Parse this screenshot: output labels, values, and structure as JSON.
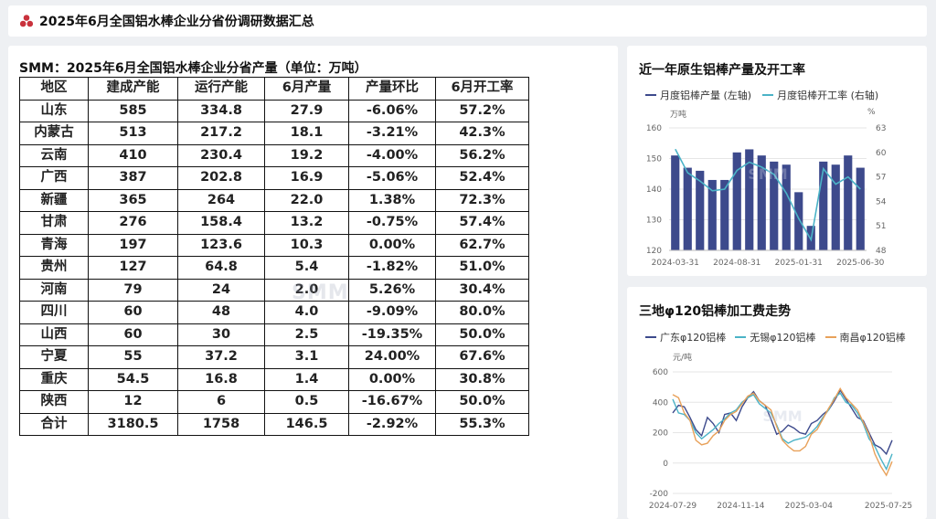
{
  "header": {
    "title": "2025年6月全国铝水棒企业分省份调研数据汇总"
  },
  "table": {
    "title": "SMM：2025年6月全国铝水棒企业分省产量（单位：万吨）",
    "headers": [
      "地区",
      "建成产能",
      "运行产能",
      "6月产量",
      "产量环比",
      "6月开工率"
    ],
    "rows": [
      [
        "山东",
        "585",
        "334.8",
        "27.9",
        "-6.06%",
        "57.2%"
      ],
      [
        "内蒙古",
        "513",
        "217.2",
        "18.1",
        "-3.21%",
        "42.3%"
      ],
      [
        "云南",
        "410",
        "230.4",
        "19.2",
        "-4.00%",
        "56.2%"
      ],
      [
        "广西",
        "387",
        "202.8",
        "16.9",
        "-5.06%",
        "52.4%"
      ],
      [
        "新疆",
        "365",
        "264",
        "22.0",
        "1.38%",
        "72.3%"
      ],
      [
        "甘肃",
        "276",
        "158.4",
        "13.2",
        "-0.75%",
        "57.4%"
      ],
      [
        "青海",
        "197",
        "123.6",
        "10.3",
        "0.00%",
        "62.7%"
      ],
      [
        "贵州",
        "127",
        "64.8",
        "5.4",
        "-1.82%",
        "51.0%"
      ],
      [
        "河南",
        "79",
        "24",
        "2.0",
        "5.26%",
        "30.4%"
      ],
      [
        "四川",
        "60",
        "48",
        "4.0",
        "-9.09%",
        "80.0%"
      ],
      [
        "山西",
        "60",
        "30",
        "2.5",
        "-19.35%",
        "50.0%"
      ],
      [
        "宁夏",
        "55",
        "37.2",
        "3.1",
        "24.00%",
        "67.6%"
      ],
      [
        "重庆",
        "54.5",
        "16.8",
        "1.4",
        "0.00%",
        "30.8%"
      ],
      [
        "陕西",
        "12",
        "6",
        "0.5",
        "-16.67%",
        "50.0%"
      ],
      [
        "合计",
        "3180.5",
        "1758",
        "146.5",
        "-2.92%",
        "55.3%"
      ]
    ]
  },
  "watermark": "SMM",
  "chart_data": [
    {
      "type": "bar",
      "title": "近一年原生铝棒产量及开工率",
      "left_unit": "万吨",
      "right_unit": "%",
      "ylim": [
        120,
        160
      ],
      "y_ticks": [
        120,
        130,
        140,
        150,
        160
      ],
      "y2lim": [
        48,
        63
      ],
      "y2_ticks": [
        48,
        51,
        54,
        57,
        60,
        63
      ],
      "x_tick_labels": [
        "2024-03-31",
        "2024-08-31",
        "2025-01-31",
        "2025-06-30"
      ],
      "series": [
        {
          "name": "月度铝棒产量 (左轴)",
          "type": "bar",
          "color": "#3d4a8c",
          "values": [
            151,
            147,
            146,
            143,
            143,
            152,
            153,
            151,
            149,
            148,
            139,
            128,
            149,
            148,
            151,
            147
          ]
        },
        {
          "name": "月度铝棒开工率 (右轴)",
          "type": "line",
          "color": "#4bb3c7",
          "values": [
            60.4,
            57.5,
            56.5,
            55.3,
            55.5,
            57.8,
            58.8,
            58.2,
            57.3,
            55.0,
            51.9,
            49.3,
            58.0,
            56.1,
            57.0,
            55.5
          ]
        }
      ]
    },
    {
      "type": "line",
      "title": "三地φ120铝棒加工费走势",
      "y_unit": "元/吨",
      "ylim": [
        -200,
        600
      ],
      "y_ticks": [
        -200,
        0,
        200,
        400,
        600
      ],
      "x_tick_labels": [
        "2024-07-29",
        "2024-11-14",
        "2025-03-04",
        "2025-07-25"
      ],
      "series": [
        {
          "name": "广东φ120铝棒",
          "color": "#3d4a8c",
          "values": [
            330,
            380,
            370,
            300,
            220,
            180,
            300,
            260,
            200,
            320,
            330,
            280,
            370,
            430,
            470,
            410,
            380,
            290,
            190,
            210,
            250,
            230,
            200,
            190,
            260,
            280,
            320,
            350,
            410,
            480,
            420,
            360,
            300,
            280,
            200,
            120,
            100,
            60,
            150
          ]
        },
        {
          "name": "无锡φ120铝棒",
          "color": "#4bb3c7",
          "values": [
            420,
            330,
            320,
            280,
            200,
            160,
            190,
            220,
            260,
            290,
            330,
            350,
            400,
            430,
            450,
            390,
            360,
            330,
            250,
            160,
            130,
            150,
            160,
            170,
            200,
            240,
            300,
            350,
            430,
            460,
            400,
            380,
            330,
            260,
            160,
            110,
            30,
            -40,
            60
          ]
        },
        {
          "name": "南昌φ120铝棒",
          "color": "#e8a15a",
          "values": [
            450,
            430,
            330,
            280,
            150,
            120,
            130,
            180,
            210,
            280,
            320,
            340,
            390,
            440,
            460,
            410,
            380,
            350,
            240,
            150,
            110,
            80,
            80,
            110,
            190,
            220,
            290,
            360,
            420,
            490,
            430,
            390,
            350,
            270,
            190,
            60,
            -20,
            -80,
            10
          ]
        }
      ]
    }
  ]
}
